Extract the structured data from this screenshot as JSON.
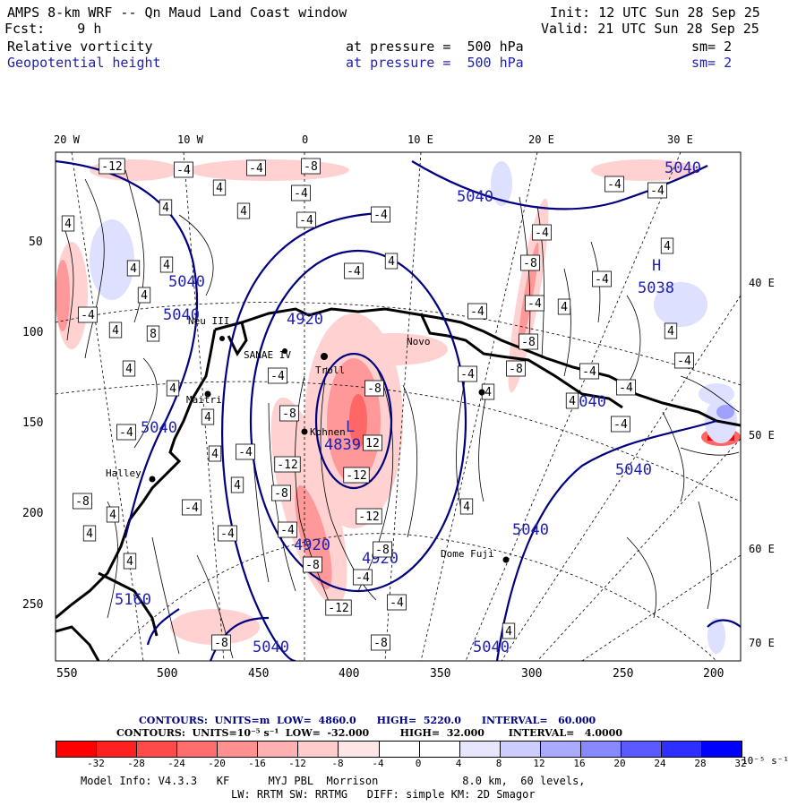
{
  "header": {
    "title": "AMPS 8-km WRF -- Qn Maud Land Coast window",
    "init": "Init: 12 UTC Sun 28 Sep 25",
    "fcst": "Fcst:    9 h",
    "valid": "Valid: 21 UTC Sun 28 Sep 25",
    "field1": "Relative vorticity",
    "field1_level": "at pressure =  500 hPa",
    "field1_sm": "sm= 2",
    "field2": "Geopotential height",
    "field2_level": "at pressure =  500 hPa",
    "field2_sm": "sm= 2"
  },
  "map": {
    "lon_labels_top": [
      "20 W",
      "10 W",
      "0",
      "10 E",
      "20 E",
      "30 E"
    ],
    "lon_labels_right": [
      "40 E",
      "50 E",
      "60 E",
      "70 E"
    ],
    "y_ticks": [
      "50",
      "100",
      "150",
      "200",
      "250"
    ],
    "x_ticks": [
      "550",
      "500",
      "450",
      "400",
      "350",
      "300",
      "250",
      "200"
    ],
    "stations": [
      "Neu III",
      "SANAE IV",
      "Troll",
      "Novo",
      "Kohnen",
      "Halley",
      "Dome Fuji",
      "Maitri"
    ],
    "height_labels": [
      "5040",
      "5040",
      "5040",
      "5040",
      "4920",
      "4839",
      "4920",
      "4920",
      "5040",
      "5040",
      "5040",
      "5160",
      "5040",
      "5040",
      "5038",
      "5040"
    ],
    "pressure_centers": [
      {
        "type": "H",
        "value": "5038"
      },
      {
        "type": "L",
        "value": "4839"
      }
    ]
  },
  "contours": {
    "height_line": "CONTOURS:  UNITS=m  LOW=  4860.0      HIGH=  5220.0      INTERVAL=   60.000",
    "vort_line": "CONTOURS:  UNITS=10⁻⁵ s⁻¹  LOW=  -32.000         HIGH=  32.000       INTERVAL=   4.0000"
  },
  "colorbar": {
    "labels": [
      "-32",
      "-28",
      "-24",
      "-20",
      "-16",
      "-12",
      "-8",
      "-4",
      "0",
      "4",
      "8",
      "12",
      "16",
      "20",
      "24",
      "28",
      "32"
    ],
    "units": "10⁻⁵ s⁻¹",
    "colors": [
      "#ff0000",
      "#ff2020",
      "#ff4a4a",
      "#ff6e6e",
      "#ff9090",
      "#ffb0b0",
      "#ffcccc",
      "#ffe6e6",
      "#ffffff",
      "#ffffff",
      "#e6e6ff",
      "#ccccff",
      "#aaaaff",
      "#8888ff",
      "#5a5aff",
      "#2e2eff",
      "#0000ff"
    ]
  },
  "footer": {
    "line1": "Model Info: V4.3.3   KF      MYJ PBL  Morrison             8.0 km,  60 levels,",
    "line2": "LW: RRTM SW: RRTMG   DIFF: simple KM: 2D Smagor"
  }
}
